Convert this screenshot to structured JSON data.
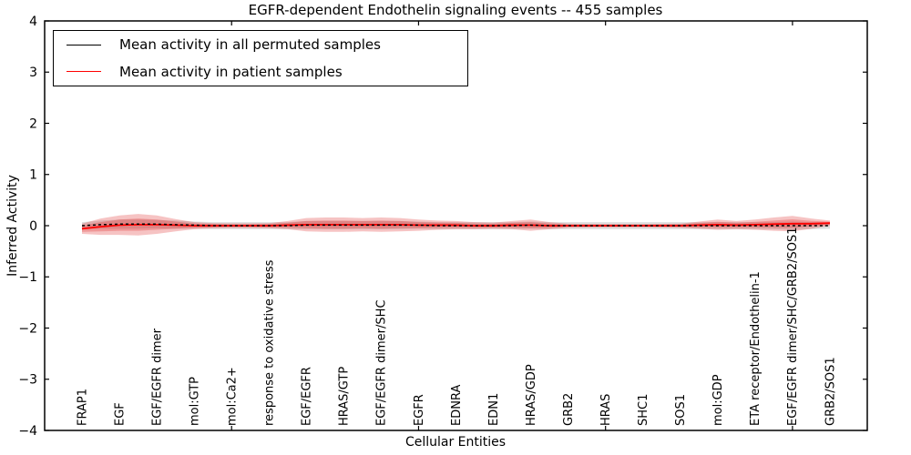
{
  "chart_data": {
    "type": "area",
    "title": "EGFR-dependent Endothelin signaling events -- 455 samples",
    "xlabel": "Cellular Entities",
    "ylabel": "Inferred Activity",
    "ylim": [
      -4,
      4
    ],
    "yticks": [
      4,
      3,
      2,
      1,
      0,
      -1,
      -2,
      -3,
      -4
    ],
    "xlim": [
      0,
      22
    ],
    "xticks": [
      5,
      10,
      15,
      20
    ],
    "grid": false,
    "legend": {
      "position": "upper left",
      "entries": [
        {
          "label": "Mean activity in all permuted samples",
          "color": "#000000"
        },
        {
          "label": "Mean activity in patient samples",
          "color": "#ff0000"
        }
      ]
    },
    "entities": [
      "FRAP1",
      "EGF",
      "EGF/EGFR dimer",
      "mol:GTP",
      "mol:Ca2+",
      "response to oxidative stress",
      "EGF/EGFR",
      "HRAS/GTP",
      "EGF/EGFR dimer/SHC",
      "EGFR",
      "EDNRA",
      "EDN1",
      "HRAS/GDP",
      "GRB2",
      "HRAS",
      "SHC1",
      "SOS1",
      "mol:GDP",
      "ETA receptor/Endothelin-1",
      "EGF/EGFR dimer/SHC/GRB2/SOS1",
      "GRB2/SOS1"
    ],
    "entity_x": [
      1,
      2,
      3,
      4,
      5,
      6,
      7,
      8,
      9,
      10,
      11,
      12,
      13,
      14,
      15,
      16,
      17,
      18,
      19,
      20,
      21
    ],
    "series": {
      "x": [
        1,
        1.5,
        2,
        2.5,
        3,
        3.5,
        4,
        4.5,
        5,
        5.5,
        6,
        6.5,
        7,
        7.5,
        8,
        8.5,
        9,
        9.5,
        10,
        10.5,
        11,
        11.5,
        12,
        12.5,
        13,
        13.5,
        14,
        15,
        16,
        17,
        17.5,
        18,
        18.5,
        19,
        19.5,
        20,
        20.5,
        21
      ],
      "permuted_mean": [
        0,
        0.02,
        0.03,
        0.03,
        0.03,
        0.02,
        0.01,
        0,
        0,
        0,
        0,
        0,
        0.01,
        0.01,
        0.01,
        0.01,
        0.01,
        0.01,
        0.01,
        0,
        0,
        0,
        0,
        0,
        0.01,
        0,
        0,
        0,
        0,
        0,
        0,
        0,
        0,
        0,
        0,
        0,
        0,
        0
      ],
      "patient_mean": [
        -0.06,
        -0.02,
        0.01,
        0.02,
        0.02,
        0.01,
        0,
        0,
        0,
        0,
        0,
        0.01,
        0.02,
        0.02,
        0.02,
        0.02,
        0.02,
        0.02,
        0.01,
        0.01,
        0.01,
        0,
        0,
        0.01,
        0.01,
        0,
        0,
        0,
        0,
        0,
        0.01,
        0.02,
        0.01,
        0.02,
        0.03,
        0.04,
        0.04,
        0.05
      ],
      "permuted_halfwidth": [
        0.07,
        0.08,
        0.09,
        0.09,
        0.08,
        0.08,
        0.07,
        0.07,
        0.07,
        0.07,
        0.07,
        0.07,
        0.08,
        0.08,
        0.08,
        0.08,
        0.08,
        0.08,
        0.07,
        0.07,
        0.07,
        0.07,
        0.07,
        0.07,
        0.07,
        0.07,
        0.07,
        0.07,
        0.07,
        0.07,
        0.07,
        0.07,
        0.07,
        0.07,
        0.07,
        0.08,
        0.07,
        0.06
      ],
      "patient_outer_halfwidth": [
        0.1,
        0.16,
        0.19,
        0.21,
        0.18,
        0.12,
        0.07,
        0.05,
        0.045,
        0.045,
        0.05,
        0.08,
        0.13,
        0.14,
        0.14,
        0.13,
        0.14,
        0.13,
        0.11,
        0.09,
        0.08,
        0.07,
        0.06,
        0.08,
        0.11,
        0.07,
        0.04,
        0.03,
        0.03,
        0.04,
        0.07,
        0.1,
        0.08,
        0.1,
        0.13,
        0.15,
        0.1,
        0.05
      ],
      "patient_inner_halfwidth": [
        0.06,
        0.09,
        0.11,
        0.12,
        0.1,
        0.07,
        0.04,
        0.03,
        0.025,
        0.025,
        0.03,
        0.045,
        0.07,
        0.08,
        0.08,
        0.07,
        0.08,
        0.07,
        0.06,
        0.05,
        0.045,
        0.04,
        0.035,
        0.045,
        0.06,
        0.04,
        0.02,
        0.02,
        0.02,
        0.025,
        0.04,
        0.055,
        0.045,
        0.055,
        0.07,
        0.085,
        0.055,
        0.03
      ]
    },
    "colors": {
      "patient_line": "#ff0000",
      "permuted_line": "#000000",
      "patient_band": "rgba(222,32,32,0.27)",
      "permuted_band": "rgba(0,0,0,0.13)",
      "axis": "#000000"
    }
  }
}
